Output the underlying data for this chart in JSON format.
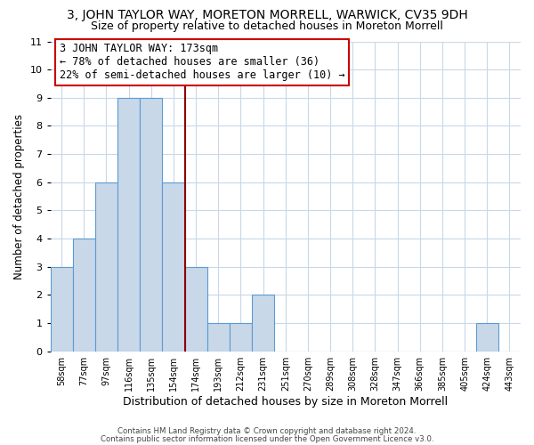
{
  "title": "3, JOHN TAYLOR WAY, MORETON MORRELL, WARWICK, CV35 9DH",
  "subtitle": "Size of property relative to detached houses in Moreton Morrell",
  "xlabel": "Distribution of detached houses by size in Moreton Morrell",
  "ylabel": "Number of detached properties",
  "bin_labels": [
    "58sqm",
    "77sqm",
    "97sqm",
    "116sqm",
    "135sqm",
    "154sqm",
    "174sqm",
    "193sqm",
    "212sqm",
    "231sqm",
    "251sqm",
    "270sqm",
    "289sqm",
    "308sqm",
    "328sqm",
    "347sqm",
    "366sqm",
    "385sqm",
    "405sqm",
    "424sqm",
    "443sqm"
  ],
  "bar_values": [
    3,
    4,
    6,
    9,
    9,
    6,
    3,
    1,
    1,
    2,
    0,
    0,
    0,
    0,
    0,
    0,
    0,
    0,
    0,
    1,
    0
  ],
  "bar_color": "#c8d8e8",
  "bar_edge_color": "#5b9bd5",
  "reference_line_index": 6,
  "reference_line_color": "#8b0000",
  "annotation_text": "3 JOHN TAYLOR WAY: 173sqm\n← 78% of detached houses are smaller (36)\n22% of semi-detached houses are larger (10) →",
  "annotation_box_color": "#ffffff",
  "annotation_box_edge": "#cc0000",
  "ylim": [
    0,
    11
  ],
  "yticks": [
    0,
    1,
    2,
    3,
    4,
    5,
    6,
    7,
    8,
    9,
    10,
    11
  ],
  "grid_color": "#c8d8e8",
  "background_color": "#ffffff",
  "footer_line1": "Contains HM Land Registry data © Crown copyright and database right 2024.",
  "footer_line2": "Contains public sector information licensed under the Open Government Licence v3.0.",
  "title_fontsize": 10,
  "subtitle_fontsize": 9,
  "xlabel_fontsize": 9,
  "ylabel_fontsize": 8.5
}
